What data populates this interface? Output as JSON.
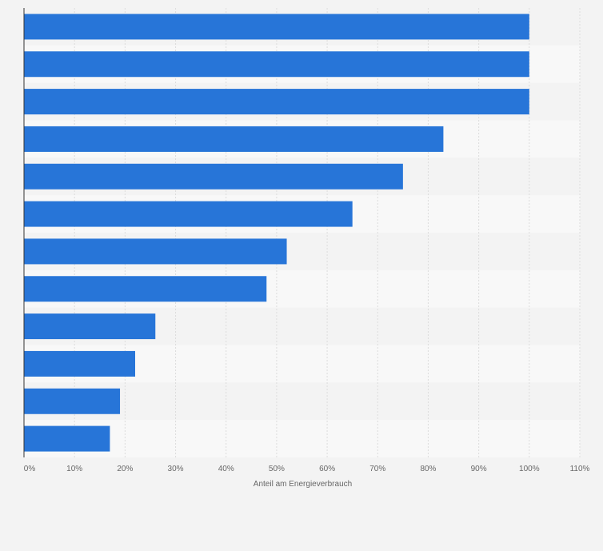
{
  "chart_data": {
    "type": "bar",
    "orientation": "horizontal",
    "title": "",
    "xlabel": "Anteil am Energieverbrauch",
    "ylabel": "",
    "categories": [
      "",
      "",
      "",
      "",
      "",
      "",
      "",
      "",
      "",
      "",
      "",
      ""
    ],
    "values": [
      100,
      100,
      100,
      83,
      75,
      65,
      52,
      48,
      26,
      22,
      19,
      17
    ],
    "xlim": [
      0,
      110
    ],
    "xticks": [
      0,
      10,
      20,
      30,
      40,
      50,
      60,
      70,
      80,
      90,
      100,
      110
    ],
    "xtick_labels": [
      "0%",
      "10%",
      "20%",
      "30%",
      "40%",
      "50%",
      "60%",
      "70%",
      "80%",
      "90%",
      "100%",
      "110%"
    ],
    "grid": true,
    "legend": "none",
    "colors": {
      "bar": "#2775d8",
      "band_even": "#f3f3f3",
      "band_odd": "#f8f8f8",
      "grid": "#dcdcdc",
      "axis": "#333333",
      "text": "#666666"
    }
  }
}
